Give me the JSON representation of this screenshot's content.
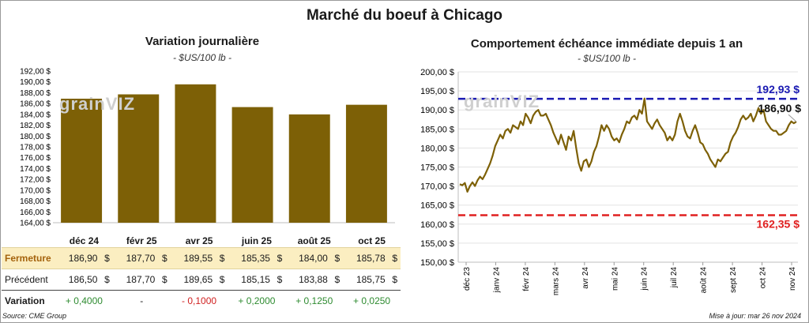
{
  "title": "Marché du boeuf à Chicago",
  "watermark": "grainVIZ",
  "left": {
    "title": "Variation journalière",
    "unit": "- $US/100 lb -"
  },
  "right": {
    "title": "Comportement échéance immédiate depuis 1 an",
    "unit": "- $US/100 lb -"
  },
  "table": {
    "rows": [
      {
        "label": "Fermeture",
        "values": [
          "186,90",
          "187,70",
          "189,55",
          "185,35",
          "184,00",
          "185,78"
        ],
        "currency": "$"
      },
      {
        "label": "Précédent",
        "values": [
          "186,50",
          "187,70",
          "189,65",
          "185,15",
          "183,88",
          "185,75"
        ],
        "currency": "$"
      },
      {
        "label": "Variation",
        "values": [
          "+ 0,4000",
          "-",
          "- 0,1000",
          "+ 0,2000",
          "+ 0,1250",
          "+ 0,0250"
        ]
      }
    ]
  },
  "footer": {
    "source": "Source: CME Group",
    "update": "Mise à jour: mar 26 nov 2024"
  },
  "colors": {
    "bar": "#7d6006",
    "line": "#7d6006",
    "high": "#1b1bb3",
    "low": "#e02020",
    "positive": "#2e8b30",
    "negative": "#d02020"
  },
  "chart_data": [
    {
      "type": "bar",
      "categories": [
        "déc 24",
        "févr 25",
        "avr 25",
        "juin 25",
        "août 25",
        "oct 25"
      ],
      "values": [
        186.9,
        187.7,
        189.55,
        185.35,
        184.0,
        185.78
      ],
      "ylim": [
        164,
        192
      ],
      "yticks": [
        "164,00 $",
        "166,00 $",
        "168,00 $",
        "170,00 $",
        "172,00 $",
        "174,00 $",
        "176,00 $",
        "178,00 $",
        "180,00 $",
        "182,00 $",
        "184,00 $",
        "186,00 $",
        "188,00 $",
        "190,00 $",
        "192,00 $"
      ]
    },
    {
      "type": "line",
      "ylim": [
        150,
        200
      ],
      "yticks": [
        "150,00 $",
        "155,00 $",
        "160,00 $",
        "165,00 $",
        "170,00 $",
        "175,00 $",
        "180,00 $",
        "185,00 $",
        "190,00 $",
        "195,00 $",
        "200,00 $"
      ],
      "x_labels": [
        "déc 23",
        "janv 24",
        "févr 24",
        "mars 24",
        "avr 24",
        "mai 24",
        "juin 24",
        "juil 24",
        "août 24",
        "sept 24",
        "oct 24",
        "nov 24"
      ],
      "series": [
        {
          "values": [
            170.5,
            170.2,
            170.8,
            168.5,
            170.0,
            171.0,
            170.0,
            171.5,
            172.5,
            171.8,
            173.0,
            174.5,
            176.0,
            178.0,
            180.5,
            182.0,
            183.5,
            182.5,
            184.5,
            185.0,
            184.0,
            186.0,
            185.5,
            185.0,
            187.0,
            186.0,
            189.0,
            188.0,
            186.5,
            188.5,
            189.5,
            190.0,
            188.5,
            188.5,
            189.0,
            187.5,
            186.0,
            184.0,
            182.5,
            181.0,
            183.5,
            181.5,
            179.5,
            183.0,
            182.0,
            184.5,
            180.0,
            176.0,
            174.0,
            176.5,
            177.0,
            175.0,
            176.5,
            179.0,
            180.5,
            183.0,
            186.0,
            184.5,
            186.0,
            185.0,
            183.0,
            182.0,
            182.5,
            181.5,
            183.5,
            185.0,
            187.0,
            186.5,
            188.0,
            188.5,
            187.5,
            190.0,
            189.0,
            193.0,
            187.0,
            186.0,
            185.0,
            186.5,
            187.5,
            186.0,
            185.0,
            184.0,
            182.0,
            183.0,
            182.0,
            183.5,
            187.0,
            189.0,
            187.0,
            184.5,
            183.0,
            182.5,
            184.5,
            186.0,
            184.0,
            181.5,
            181.0,
            179.5,
            178.5,
            177.0,
            176.0,
            175.0,
            177.0,
            176.5,
            177.5,
            178.5,
            179.0,
            181.5,
            183.0,
            184.0,
            185.5,
            187.5,
            188.5,
            187.5,
            188.0,
            189.0,
            187.0,
            188.5,
            190.5,
            189.0,
            190.0,
            187.0,
            186.0,
            185.0,
            184.5,
            184.5,
            183.5,
            183.5,
            184.0,
            184.5,
            186.0,
            187.0,
            186.5,
            186.9
          ]
        }
      ],
      "annotations": [
        {
          "label": "192,93 $",
          "value": 192.93,
          "kind": "high"
        },
        {
          "label": "162,35 $",
          "value": 162.35,
          "kind": "low"
        },
        {
          "label": "186,90 $",
          "value": 186.9,
          "kind": "last"
        }
      ]
    }
  ]
}
